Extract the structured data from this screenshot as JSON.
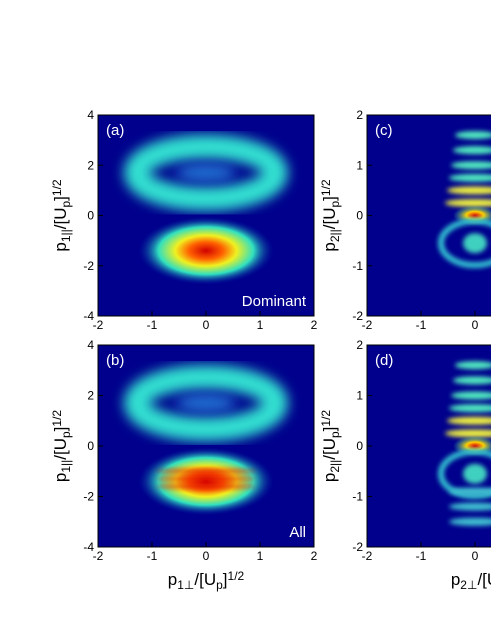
{
  "chart_data": [
    {
      "type": "heatmap",
      "panel_label": "(a)",
      "annotation": "Dominant",
      "ylabel": [
        "p",
        "1||",
        "/[U",
        "p",
        "]",
        "1/2"
      ],
      "xlim": [
        -2,
        2
      ],
      "ylim": [
        -4,
        4
      ],
      "xticks": [
        -2,
        -1,
        0,
        1,
        2
      ],
      "yticks": [
        -4,
        -2,
        0,
        2,
        4
      ]
    },
    {
      "type": "heatmap",
      "panel_label": "(b)",
      "annotation": "All",
      "xlabel": [
        "p",
        "1⊥",
        "/[U",
        "p",
        "]",
        "1/2"
      ],
      "ylabel": [
        "p",
        "1||",
        "/[U",
        "p",
        "]",
        "1/2"
      ],
      "xlim": [
        -2,
        2
      ],
      "ylim": [
        -4,
        4
      ],
      "xticks": [
        -2,
        -1,
        0,
        1,
        2
      ],
      "yticks": [
        -4,
        -2,
        0,
        2,
        4
      ]
    },
    {
      "type": "heatmap",
      "panel_label": "(c)",
      "ylabel": [
        "p",
        "2||",
        "/[U",
        "p",
        "]",
        "1/2"
      ],
      "xlim": [
        -2,
        2
      ],
      "ylim": [
        -2,
        2
      ],
      "xticks": [
        -2,
        -1,
        0
      ],
      "yticks": [
        -2,
        -1,
        0,
        1,
        2
      ]
    },
    {
      "type": "heatmap",
      "panel_label": "(d)",
      "xlabel": [
        "p",
        "2⊥",
        "/[U"
      ],
      "ylabel": [
        "p",
        "2||",
        "/[U",
        "p",
        "]",
        "1/2"
      ],
      "xlim": [
        -2,
        2
      ],
      "ylim": [
        -2,
        2
      ],
      "xticks": [
        -2,
        -1,
        0
      ],
      "yticks": [
        -2,
        -1,
        0,
        1,
        2
      ]
    }
  ]
}
